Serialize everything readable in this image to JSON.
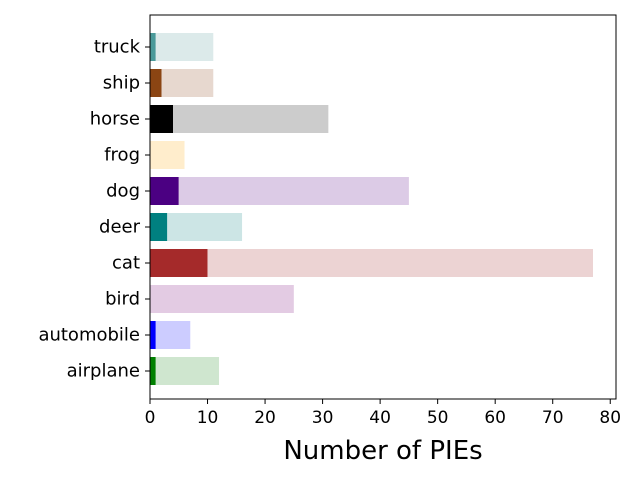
{
  "chart_data": {
    "type": "bar",
    "orientation": "horizontal",
    "stacked": true,
    "xlabel": "Number of PIEs",
    "ylabel": "",
    "xlim": [
      0,
      81
    ],
    "xticks": [
      0,
      10,
      20,
      30,
      40,
      50,
      60,
      70,
      80
    ],
    "grid": false,
    "categories": [
      "airplane",
      "automobile",
      "bird",
      "cat",
      "deer",
      "dog",
      "frog",
      "horse",
      "ship",
      "truck"
    ],
    "series": [
      {
        "values": [
          1,
          1,
          0,
          10,
          3,
          5,
          0,
          4,
          2,
          1
        ],
        "colors": [
          "#008000",
          "#0000ff",
          "#800080",
          "#a52a2a",
          "#008080",
          "#4b0082",
          "#ffe4b5",
          "#000000",
          "#8b4513",
          "#4a9a9a"
        ]
      },
      {
        "values": [
          11,
          6,
          25,
          67,
          13,
          40,
          6,
          27,
          9,
          10
        ],
        "colors": [
          "#cfe6cf",
          "#ccccff",
          "#e3cbe3",
          "#ecd3d3",
          "#cce5e5",
          "#dccbe6",
          "#ffedcc",
          "#cccccc",
          "#e7d8cf",
          "#dceaea"
        ]
      }
    ]
  }
}
